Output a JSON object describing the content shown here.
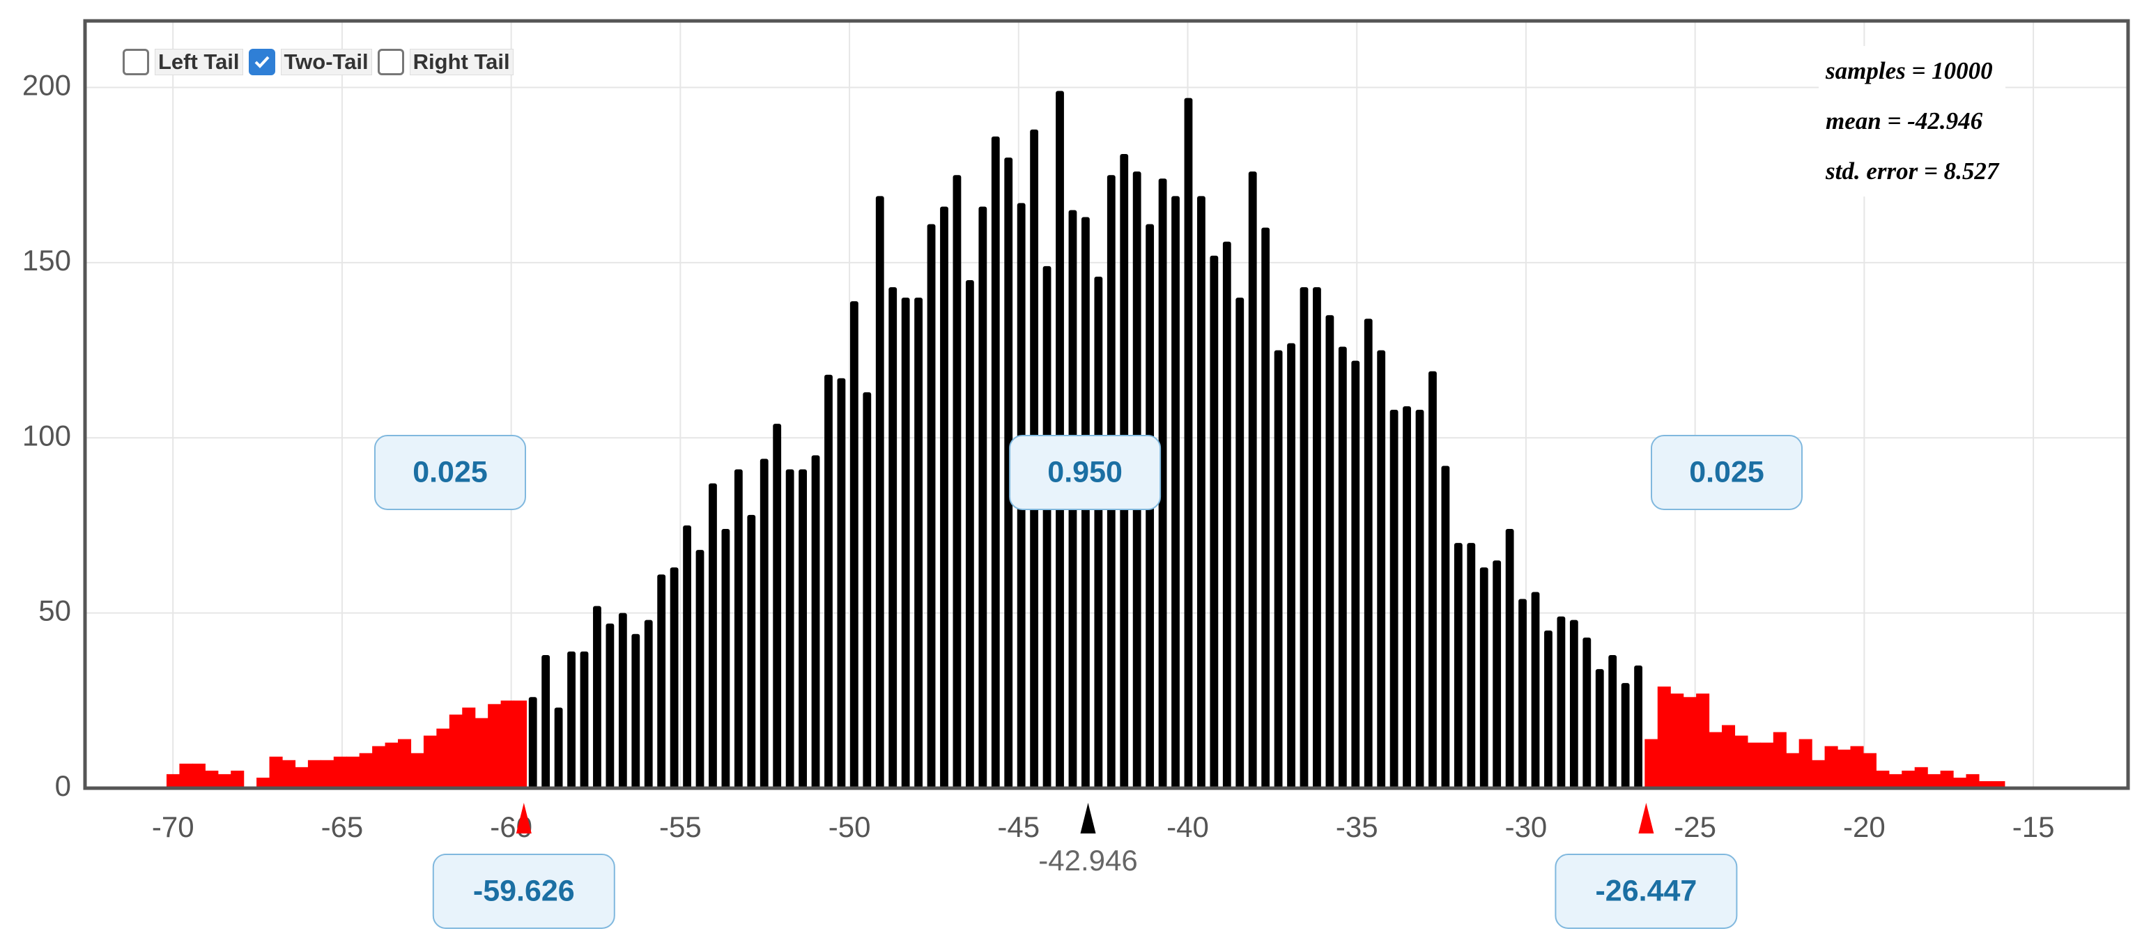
{
  "controls": [
    {
      "label": "Left Tail",
      "checked": false
    },
    {
      "label": "Two-Tail",
      "checked": true
    },
    {
      "label": "Right Tail",
      "checked": false
    }
  ],
  "stats": [
    "samples = 10000",
    "mean = -42.946",
    "std. error = 8.527"
  ],
  "proportions": [
    "0.025",
    "0.950",
    "0.025"
  ],
  "chart_data": {
    "type": "bar",
    "x": [
      -70,
      -69.62,
      -69.24,
      -68.86,
      -68.48,
      -68.1,
      -67.72,
      -67.34,
      -66.96,
      -66.58,
      -66.2,
      -65.82,
      -65.44,
      -65.06,
      -64.68,
      -64.3,
      -63.92,
      -63.54,
      -63.16,
      -62.78,
      -62.4,
      -62.02,
      -61.64,
      -61.26,
      -60.88,
      -60.5,
      -60.12,
      -59.74,
      -59.36,
      -58.98,
      -58.6,
      -58.22,
      -57.84,
      -57.46,
      -57.08,
      -56.7,
      -56.32,
      -55.94,
      -55.56,
      -55.18,
      -54.8,
      -54.42,
      -54.04,
      -53.66,
      -53.28,
      -52.9,
      -52.52,
      -52.14,
      -51.76,
      -51.38,
      -51,
      -50.62,
      -50.24,
      -49.86,
      -49.48,
      -49.1,
      -48.72,
      -48.34,
      -47.96,
      -47.58,
      -47.2,
      -46.82,
      -46.44,
      -46.06,
      -45.68,
      -45.3,
      -44.92,
      -44.54,
      -44.16,
      -43.78,
      -43.4,
      -43.02,
      -42.64,
      -42.26,
      -41.88,
      -41.5,
      -41.12,
      -40.74,
      -40.36,
      -39.98,
      -39.6,
      -39.22,
      -38.84,
      -38.46,
      -38.08,
      -37.7,
      -37.32,
      -36.94,
      -36.56,
      -36.18,
      -35.8,
      -35.42,
      -35.04,
      -34.66,
      -34.28,
      -33.9,
      -33.52,
      -33.14,
      -32.76,
      -32.38,
      -32,
      -31.62,
      -31.24,
      -30.86,
      -30.48,
      -30.1,
      -29.72,
      -29.34,
      -28.96,
      -28.58,
      -28.2,
      -27.82,
      -27.44,
      -27.06,
      -26.68,
      -26.3,
      -25.92,
      -25.54,
      -25.16,
      -24.78,
      -24.4,
      -24.02,
      -23.64,
      -23.26,
      -22.88,
      -22.5,
      -22.12,
      -21.74,
      -21.36,
      -20.98,
      -20.6,
      -20.22,
      -19.84,
      -19.46,
      -19.08,
      -18.7,
      -18.32,
      -17.94,
      -17.56,
      -17.18,
      -16.8,
      -16.42,
      -16.04
    ],
    "values": [
      4,
      7,
      7,
      5,
      4,
      5,
      0,
      3,
      9,
      8,
      6,
      8,
      8,
      9,
      9,
      10,
      12,
      13,
      14,
      10,
      15,
      17,
      21,
      23,
      20,
      24,
      25,
      25,
      26,
      38,
      23,
      39,
      39,
      52,
      47,
      50,
      44,
      48,
      61,
      63,
      75,
      68,
      87,
      74,
      91,
      78,
      94,
      104,
      91,
      91,
      95,
      118,
      117,
      139,
      113,
      169,
      143,
      140,
      140,
      161,
      166,
      175,
      145,
      166,
      186,
      180,
      167,
      188,
      149,
      199,
      165,
      163,
      146,
      175,
      181,
      176,
      161,
      174,
      169,
      197,
      169,
      152,
      156,
      140,
      176,
      160,
      125,
      127,
      143,
      143,
      135,
      126,
      122,
      134,
      125,
      108,
      109,
      108,
      119,
      92,
      70,
      70,
      63,
      65,
      74,
      54,
      56,
      45,
      49,
      48,
      43,
      34,
      38,
      30,
      35,
      14,
      29,
      27,
      26,
      27,
      16,
      18,
      15,
      13,
      13,
      16,
      10,
      14,
      8,
      12,
      11,
      12,
      10,
      5,
      4,
      5,
      6,
      4,
      5,
      3,
      4,
      2,
      2
    ],
    "color": "#000000",
    "tail_color": "#ff0000",
    "mean": -42.946,
    "lower_cutoff": -59.626,
    "upper_cutoff": -26.447,
    "xlim": [
      -72.6,
      -12.2
    ],
    "xticks": [
      -70,
      -65,
      -60,
      -55,
      -50,
      -45,
      -40,
      -35,
      -30,
      -25,
      -20,
      -15
    ],
    "ylim": [
      0,
      219
    ],
    "yticks": [
      0,
      50,
      100,
      150,
      200
    ],
    "grid": true
  }
}
